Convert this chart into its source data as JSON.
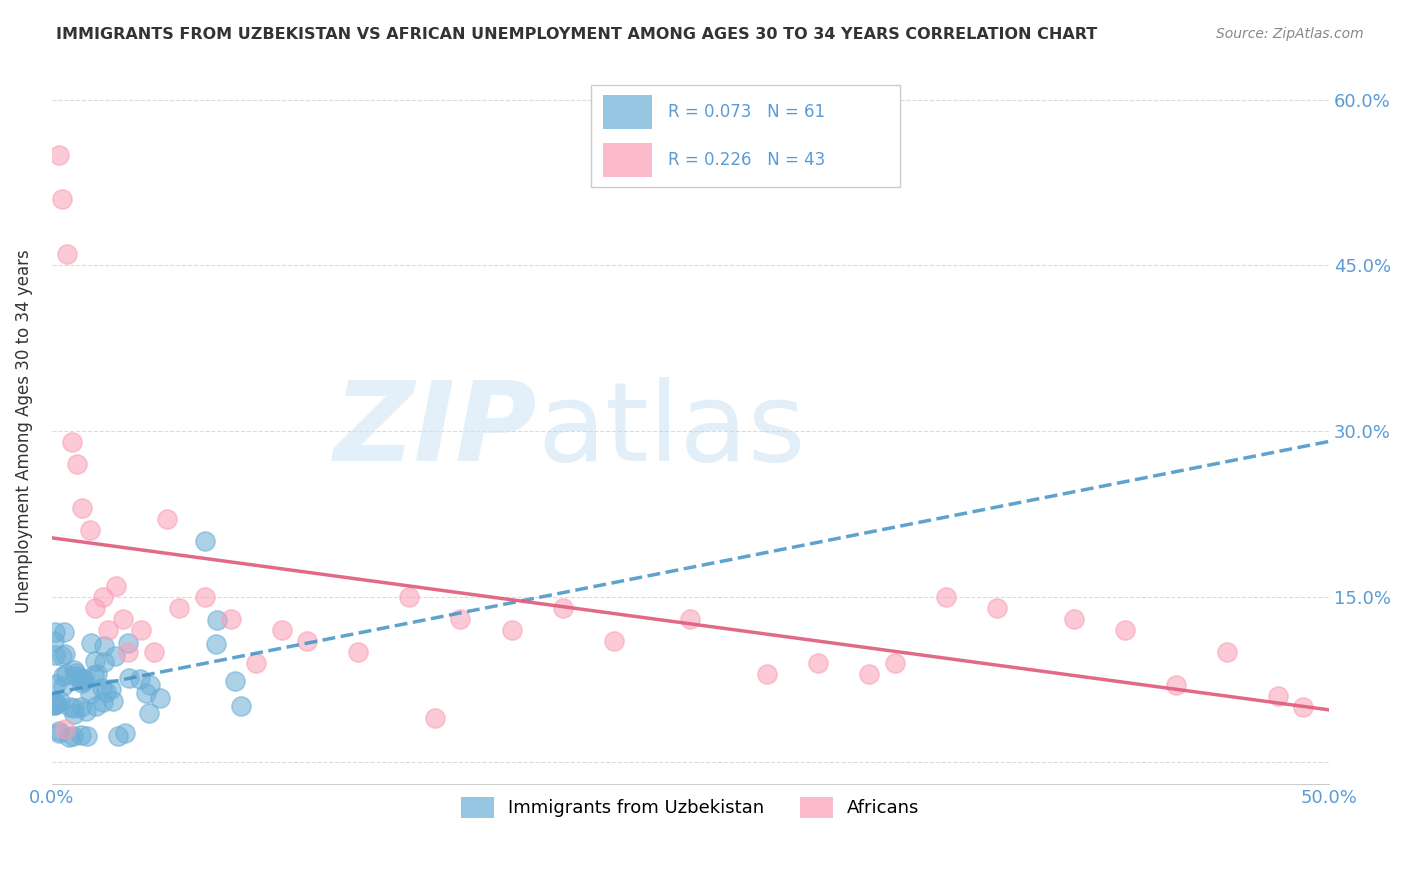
{
  "title": "IMMIGRANTS FROM UZBEKISTAN VS AFRICAN UNEMPLOYMENT AMONG AGES 30 TO 34 YEARS CORRELATION CHART",
  "source": "Source: ZipAtlas.com",
  "ylabel": "Unemployment Among Ages 30 to 34 years",
  "xlim": [
    0.0,
    0.5
  ],
  "ylim": [
    -0.02,
    0.62
  ],
  "legend_r1": "R = 0.073",
  "legend_n1": "N = 61",
  "legend_r2": "R = 0.226",
  "legend_n2": "N = 43",
  "blue_color": "#6baed6",
  "pink_color": "#fa9fb5",
  "blue_line_color": "#4292c6",
  "pink_line_color": "#e05a7a",
  "background_color": "#ffffff",
  "grid_color": "#cccccc",
  "tick_label_color": "#5b9bd5",
  "title_color": "#333333",
  "source_color": "#888888"
}
